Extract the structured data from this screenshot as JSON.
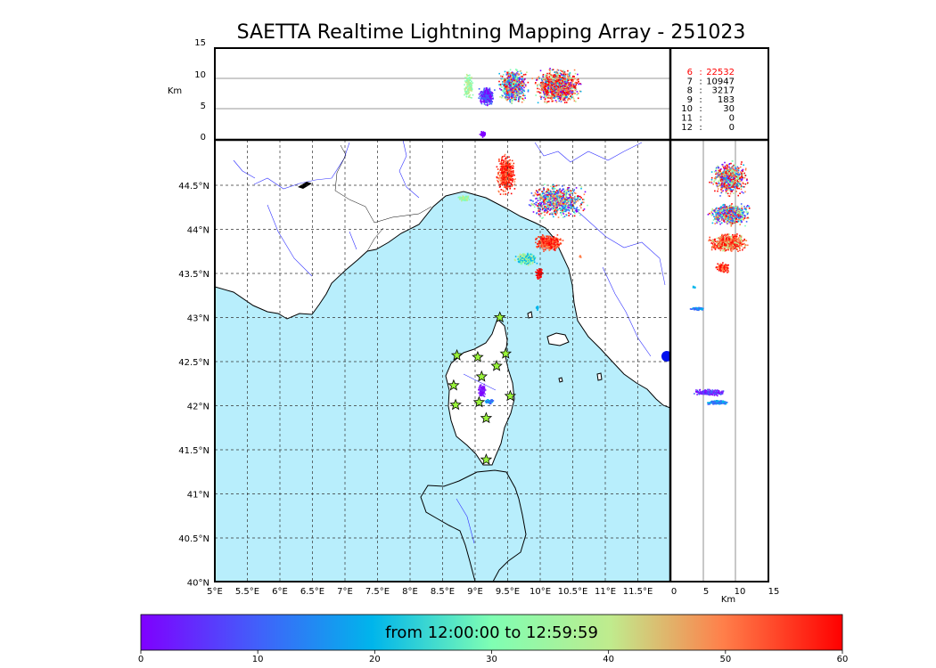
{
  "title": "SAETTA Realtime Lightning Mapping Array - 251023",
  "colors": {
    "sea": "#b8eefc",
    "land": "#ffffff",
    "river": "#3030ff",
    "border": "#000000",
    "grid": "#444444",
    "station": "#9af53a",
    "count_highlight": "#ff0000"
  },
  "top_panel": {
    "ylabel": "Km",
    "yticks": [
      "15",
      "10",
      "5",
      "0"
    ]
  },
  "map": {
    "lon_ticks": [
      "5°E",
      "5.5°E",
      "6°E",
      "6.5°E",
      "7°E",
      "7.5°E",
      "8°E",
      "8.5°E",
      "9°E",
      "9.5°E",
      "10°E",
      "10.5°E",
      "11°E",
      "11.5°E"
    ],
    "lat_ticks": [
      "44.5°N",
      "44°N",
      "43.5°N",
      "43°N",
      "42.5°N",
      "42°N",
      "41.5°N",
      "41°N",
      "40.5°N",
      "40°N"
    ]
  },
  "right_panel": {
    "xlabel": "Km",
    "xticks": [
      "0",
      "5",
      "10",
      "15"
    ]
  },
  "counts": [
    {
      "km": "6",
      "count": "22532",
      "highlight": true
    },
    {
      "km": "7",
      "count": "10947",
      "highlight": false
    },
    {
      "km": "8",
      "count": "3217",
      "highlight": false
    },
    {
      "km": "9",
      "count": "183",
      "highlight": false
    },
    {
      "km": "10",
      "count": "30",
      "highlight": false
    },
    {
      "km": "11",
      "count": "0",
      "highlight": false
    },
    {
      "km": "12",
      "count": "0",
      "highlight": false
    }
  ],
  "colorbar": {
    "label": "from 12:00:00 to 12:59:59",
    "ticks": [
      "0",
      "10",
      "20",
      "30",
      "40",
      "50",
      "60"
    ],
    "min": 0,
    "max": 60
  },
  "stations": [
    {
      "lon": 9.38,
      "lat": 42.99
    },
    {
      "lon": 8.72,
      "lat": 42.56
    },
    {
      "lon": 9.04,
      "lat": 42.54
    },
    {
      "lon": 9.47,
      "lat": 42.58
    },
    {
      "lon": 9.33,
      "lat": 42.44
    },
    {
      "lon": 9.1,
      "lat": 42.32
    },
    {
      "lon": 8.67,
      "lat": 42.22
    },
    {
      "lon": 9.54,
      "lat": 42.1
    },
    {
      "lon": 8.7,
      "lat": 42.0
    },
    {
      "lon": 9.06,
      "lat": 42.03
    },
    {
      "lon": 9.17,
      "lat": 41.85
    },
    {
      "lon": 9.17,
      "lat": 41.38
    }
  ]
}
